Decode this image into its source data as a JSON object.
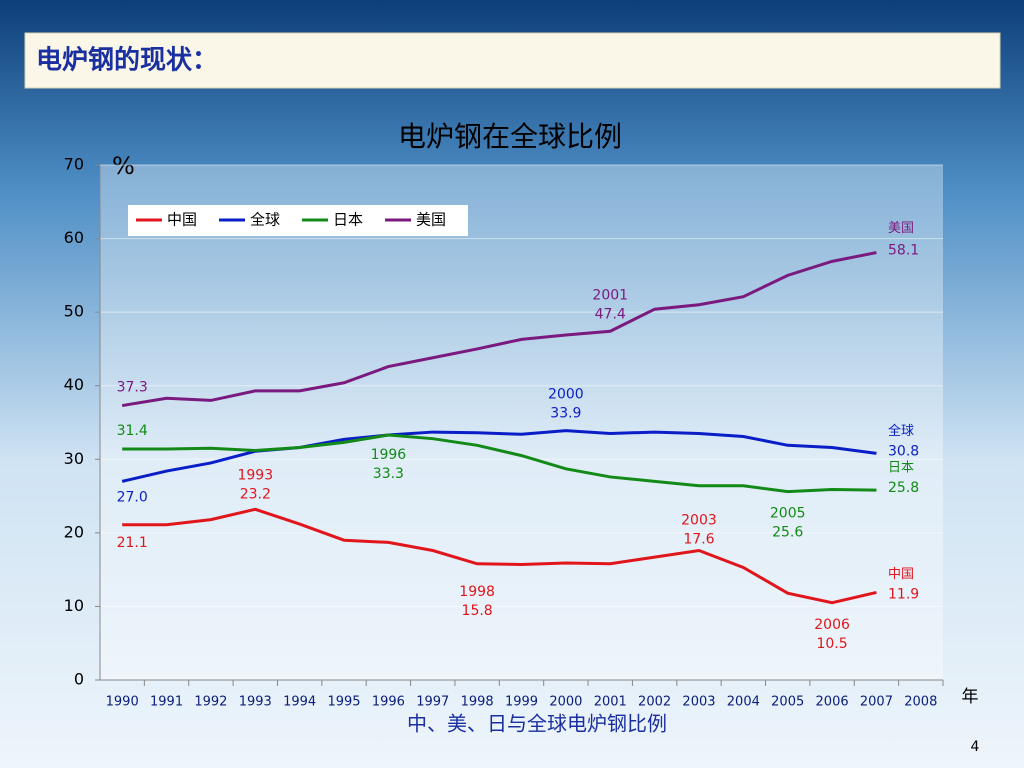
{
  "slide_title": "电炉钢的现状：",
  "page_number": "4",
  "chart_data": {
    "type": "line",
    "title": "电炉钢在全球比例",
    "y_unit": "%",
    "x_unit": "年",
    "caption": "中、美、日与全球电炉钢比例",
    "categories": [
      "1990",
      "1991",
      "1992",
      "1993",
      "1994",
      "1995",
      "1996",
      "1997",
      "1998",
      "1999",
      "2000",
      "2001",
      "2002",
      "2003",
      "2004",
      "2005",
      "2006",
      "2007",
      "2008"
    ],
    "series": [
      {
        "name": "中国",
        "color": "#e0161c",
        "values": [
          21.1,
          21.1,
          21.8,
          23.2,
          21.2,
          19.0,
          18.7,
          17.6,
          15.8,
          15.7,
          15.9,
          15.8,
          16.7,
          17.6,
          15.3,
          11.8,
          10.5,
          11.9,
          null
        ],
        "value_labels": [
          "21.1",
          null,
          null,
          "23.2",
          null,
          null,
          null,
          null,
          "15.8",
          null,
          null,
          null,
          null,
          "17.6",
          null,
          null,
          "10.5",
          "11.9",
          null
        ]
      },
      {
        "name": "全球",
        "color": "#0a1ec8",
        "values": [
          27.0,
          28.4,
          29.5,
          31.1,
          31.6,
          32.7,
          33.3,
          33.7,
          33.6,
          33.4,
          33.9,
          33.5,
          33.7,
          33.5,
          33.1,
          31.9,
          31.6,
          30.8,
          null
        ],
        "value_labels": [
          "27.0",
          null,
          null,
          null,
          null,
          null,
          null,
          null,
          null,
          null,
          "33.9",
          null,
          null,
          null,
          null,
          null,
          null,
          "30.8",
          null
        ]
      },
      {
        "name": "日本",
        "color": "#138a18",
        "values": [
          31.4,
          31.4,
          31.5,
          31.2,
          31.6,
          32.3,
          33.3,
          32.8,
          31.9,
          30.5,
          28.7,
          27.6,
          27.0,
          26.4,
          26.4,
          25.6,
          25.9,
          25.8,
          null
        ],
        "value_labels": [
          "31.4",
          null,
          null,
          null,
          null,
          null,
          "33.3",
          null,
          null,
          null,
          null,
          null,
          null,
          null,
          null,
          "25.6",
          null,
          "25.8",
          null
        ]
      },
      {
        "name": "美国",
        "color": "#7a1a7e",
        "values": [
          37.3,
          38.3,
          38.0,
          39.3,
          39.3,
          40.4,
          42.6,
          43.8,
          45.0,
          46.3,
          46.9,
          47.4,
          50.4,
          51.0,
          52.1,
          55.0,
          56.9,
          58.1,
          null
        ],
        "value_labels": [
          "37.3",
          null,
          null,
          null,
          null,
          null,
          null,
          null,
          null,
          null,
          null,
          "47.4",
          null,
          null,
          null,
          null,
          null,
          "58.1",
          null
        ]
      }
    ],
    "ylim": [
      0,
      70
    ],
    "yticks": [
      0,
      10,
      20,
      30,
      40,
      50,
      60,
      70
    ],
    "grid": true,
    "legend": "top-left"
  }
}
